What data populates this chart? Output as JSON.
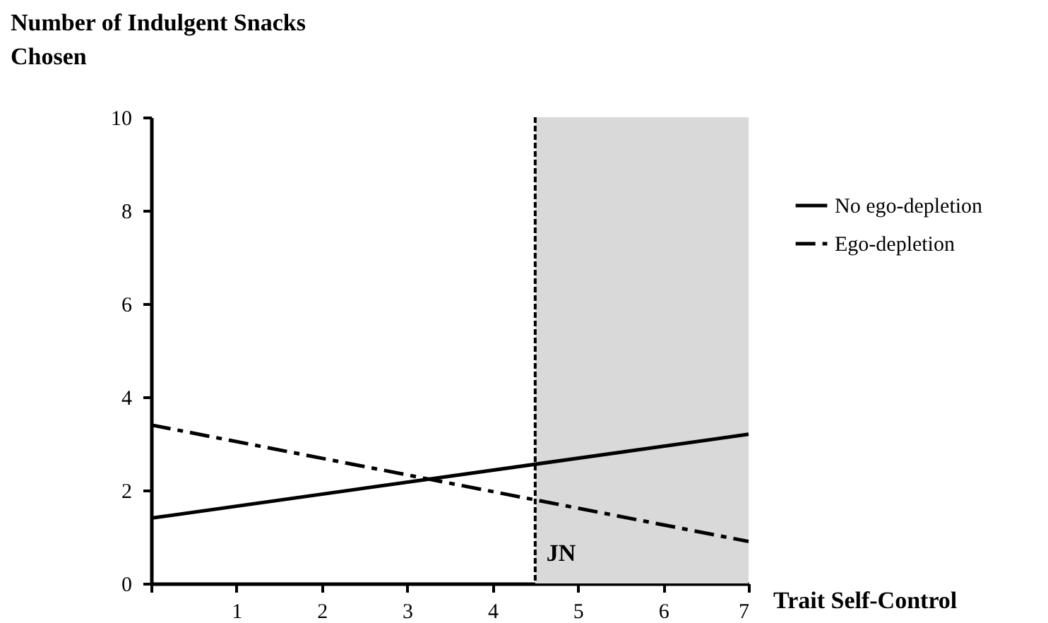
{
  "chart_data": {
    "type": "line",
    "xlabel": "Trait Self-Control",
    "ylabel": "Number of Indulgent Snacks Chosen",
    "x": [
      0,
      7
    ],
    "series": [
      {
        "name": "No ego-depletion",
        "color": "#000000",
        "line_style": "solid",
        "values": [
          1.4,
          3.2
        ]
      },
      {
        "name": "Ego-depletion",
        "color": "#000000",
        "line_style": "dashed",
        "values": [
          3.4,
          0.9
        ]
      }
    ],
    "xlim": [
      0,
      7
    ],
    "xticks": [
      {
        "value": 0,
        "label": null
      },
      1,
      2,
      3,
      4,
      5,
      6,
      7
    ],
    "ylim": [
      0,
      10
    ],
    "yticks": [
      0,
      2,
      4,
      6,
      8,
      10
    ],
    "ref_lines": [
      {
        "axis": "x",
        "value": 4.5,
        "label": "JN",
        "line_style": "dashed"
      }
    ],
    "bands": [
      {
        "axis": "x",
        "from": 4.5,
        "to": 7,
        "color": "#d9d9d9"
      }
    ],
    "legend": "right",
    "grid": false,
    "marker": "none"
  }
}
